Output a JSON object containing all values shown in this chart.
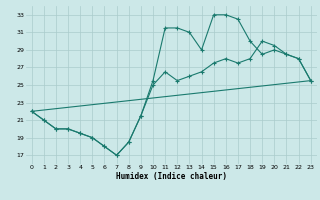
{
  "title": "",
  "xlabel": "Humidex (Indice chaleur)",
  "bg_color": "#cce8e8",
  "grid_color": "#aacccc",
  "line_color": "#1a7a6e",
  "marker": "+",
  "xlim": [
    -0.5,
    23.5
  ],
  "ylim": [
    16.0,
    34.0
  ],
  "xticks": [
    0,
    1,
    2,
    3,
    4,
    5,
    6,
    7,
    8,
    9,
    10,
    11,
    12,
    13,
    14,
    15,
    16,
    17,
    18,
    19,
    20,
    21,
    22,
    23
  ],
  "yticks": [
    17,
    19,
    21,
    23,
    25,
    27,
    29,
    31,
    33
  ],
  "line1_x": [
    0,
    1,
    2,
    3,
    4,
    5,
    6,
    7,
    8,
    9,
    10,
    11,
    12,
    13,
    14,
    15,
    16,
    17,
    18,
    19,
    20,
    21,
    22,
    23
  ],
  "line1_y": [
    22.0,
    21.0,
    20.0,
    20.0,
    19.5,
    19.0,
    18.0,
    17.0,
    18.5,
    21.5,
    25.5,
    31.5,
    31.5,
    31.0,
    29.0,
    33.0,
    33.0,
    32.5,
    30.0,
    28.5,
    29.0,
    28.5,
    28.0,
    25.5
  ],
  "line2_x": [
    0,
    1,
    2,
    3,
    4,
    5,
    6,
    7,
    8,
    9,
    10,
    11,
    12,
    13,
    14,
    15,
    16,
    17,
    18,
    19,
    20,
    21,
    22,
    23
  ],
  "line2_y": [
    22.0,
    21.0,
    20.0,
    20.0,
    19.5,
    19.0,
    18.0,
    17.0,
    18.5,
    21.5,
    25.0,
    26.5,
    25.5,
    26.0,
    26.5,
    27.5,
    28.0,
    27.5,
    28.0,
    30.0,
    29.5,
    28.5,
    28.0,
    25.5
  ],
  "line3_x": [
    0,
    23
  ],
  "line3_y": [
    22.0,
    25.5
  ],
  "xlabel_fontsize": 5.5,
  "tick_fontsize": 4.5,
  "markersize": 3,
  "linewidth": 0.8
}
